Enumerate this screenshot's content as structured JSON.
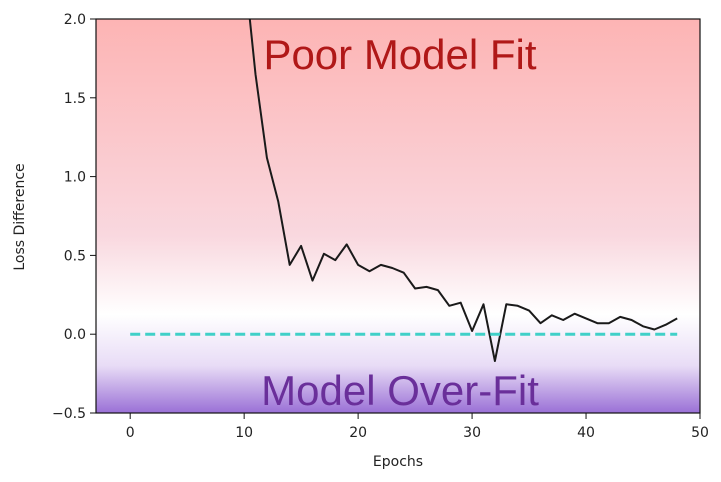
{
  "chart_data": {
    "type": "line",
    "title": "",
    "xlabel": "Epochs",
    "ylabel": "Loss Difference",
    "xlim": [
      -3,
      50
    ],
    "ylim": [
      -0.5,
      2.0
    ],
    "xticks": [
      0,
      10,
      20,
      30,
      40,
      50
    ],
    "yticks": [
      -0.5,
      0.0,
      0.5,
      1.0,
      1.5,
      2.0
    ],
    "xtick_labels": [
      "0",
      "10",
      "20",
      "30",
      "40",
      "50"
    ],
    "ytick_labels": [
      "−0.5",
      "0.0",
      "0.5",
      "1.0",
      "1.5",
      "2.0"
    ],
    "grid": false,
    "series": [
      {
        "color": "#1a1a1a",
        "style": "solid",
        "x": [
          10.5,
          11,
          12,
          13,
          14,
          15,
          16,
          17,
          18,
          19,
          20,
          21,
          22,
          23,
          24,
          25,
          26,
          27,
          28,
          29,
          30,
          31,
          32,
          33,
          34,
          35,
          36,
          37,
          38,
          39,
          40,
          41,
          42,
          43,
          44,
          45,
          46,
          47,
          48
        ],
        "y": [
          2.0,
          1.65,
          1.12,
          0.84,
          0.44,
          0.56,
          0.34,
          0.51,
          0.47,
          0.57,
          0.44,
          0.4,
          0.44,
          0.42,
          0.39,
          0.29,
          0.3,
          0.28,
          0.18,
          0.2,
          0.02,
          0.19,
          -0.17,
          0.19,
          0.18,
          0.15,
          0.07,
          0.12,
          0.09,
          0.13,
          0.1,
          0.07,
          0.07,
          0.11,
          0.09,
          0.05,
          0.03,
          0.06,
          0.1
        ]
      },
      {
        "color": "#40d0c8",
        "style": "dashed",
        "x": [
          0,
          48
        ],
        "y": [
          0.0,
          0.0
        ]
      }
    ],
    "annotations": [
      {
        "text": "Poor Model Fit",
        "color": "#b01818"
      },
      {
        "text": "Model Over-Fit",
        "color": "#6a2f9a"
      }
    ],
    "background_gradient": {
      "top_color": "#fdb4b4",
      "middle_color": "#ffffff",
      "bottom_color": "#9a70d6"
    }
  }
}
